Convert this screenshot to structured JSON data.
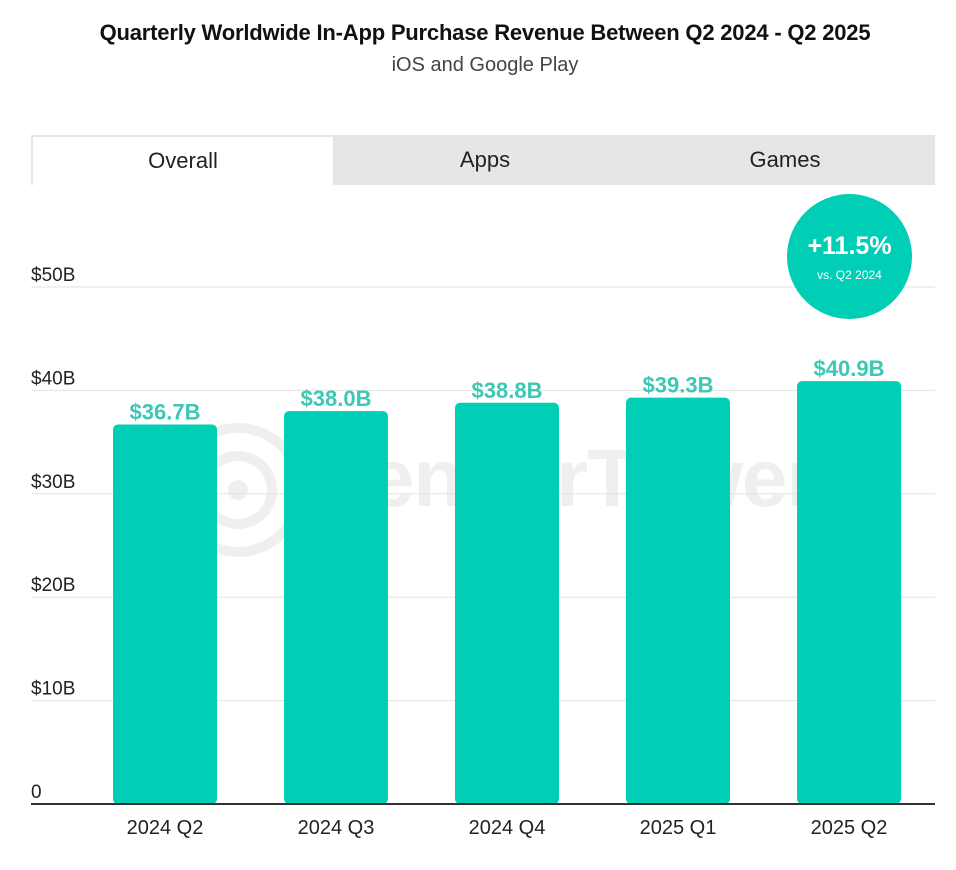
{
  "header": {
    "title": "Quarterly Worldwide In-App Purchase Revenue Between Q2 2024 - Q2 2025",
    "subtitle": "iOS and Google Play"
  },
  "tabs": [
    {
      "label": "Overall",
      "active": true
    },
    {
      "label": "Apps",
      "active": false
    },
    {
      "label": "Games",
      "active": false
    }
  ],
  "badge": {
    "value": "+11.5%",
    "note": "vs. Q2 2024"
  },
  "watermark": {
    "text": "SensorTower"
  },
  "colors": {
    "bar": "#00cfb6",
    "label": "#3cc8b4",
    "grid": "#e2e2e2",
    "axis": "#333333",
    "tab_bg": "#e6e6e6"
  },
  "chart_data": {
    "type": "bar",
    "title": "Quarterly Worldwide In-App Purchase Revenue Between Q2 2024 - Q2 2025",
    "subtitle": "iOS and Google Play",
    "categories": [
      "2024 Q2",
      "2024 Q3",
      "2024 Q4",
      "2025 Q1",
      "2025 Q2"
    ],
    "values": [
      36.7,
      38.0,
      38.8,
      39.3,
      40.9
    ],
    "value_labels": [
      "$36.7B",
      "$38.0B",
      "$38.8B",
      "$39.3B",
      "$40.9B"
    ],
    "xlabel": "",
    "ylabel": "",
    "ylim": [
      0,
      50
    ],
    "yticks": [
      0,
      10,
      20,
      30,
      40,
      50
    ],
    "ytick_labels": [
      "0",
      "$10B",
      "$20B",
      "$30B",
      "$40B",
      "$50B"
    ],
    "grid": true
  }
}
